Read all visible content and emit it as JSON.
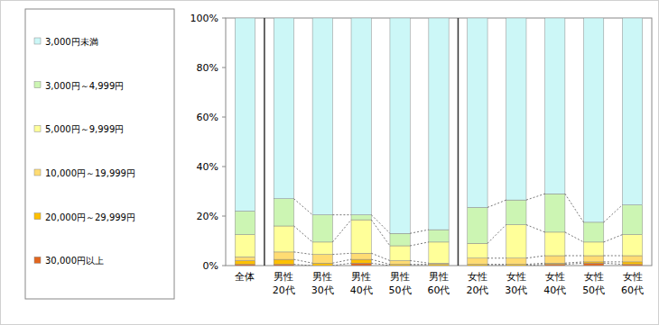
{
  "chart_data": {
    "type": "bar",
    "stacked": true,
    "categories": [
      "全体",
      "男性\n20代",
      "男性\n30代",
      "男性\n40代",
      "男性\n50代",
      "男性\n60代",
      "女性\n20代",
      "女性\n30代",
      "女性\n40代",
      "女性\n50代",
      "女性\n60代"
    ],
    "series": [
      {
        "name": "3,000円未満",
        "color": "#ccf7f7",
        "values": [
          78,
          73,
          79.5,
          79.5,
          87,
          85.5,
          76.5,
          73.5,
          71,
          82.5,
          75.5
        ]
      },
      {
        "name": "3,000円～4,999円",
        "color": "#ccf5b3",
        "values": [
          9.5,
          11,
          11,
          2,
          5,
          5,
          14.5,
          10,
          15.5,
          8,
          12
        ]
      },
      {
        "name": "5,000円～9,999円",
        "color": "#ffff99",
        "values": [
          9,
          10.5,
          5,
          13.5,
          6,
          8.5,
          6,
          13.5,
          9.5,
          5.5,
          8.5
        ]
      },
      {
        "name": "10,000円～19,999円",
        "color": "#ffdc73",
        "values": [
          1.5,
          3,
          3.5,
          2.5,
          1.5,
          0.5,
          2.5,
          2.5,
          3,
          2.5,
          2.5
        ]
      },
      {
        "name": "20,000円～29,999円",
        "color": "#ffc000",
        "values": [
          1.5,
          2,
          1,
          1.5,
          0.5,
          0.5,
          0.5,
          0.5,
          0.5,
          0.5,
          1
        ]
      },
      {
        "name": "30,000円以上",
        "color": "#e2661e",
        "values": [
          0.5,
          0.5,
          0,
          1,
          0,
          0,
          0,
          0,
          0.5,
          1,
          0.5
        ]
      }
    ],
    "ylim": [
      0,
      100
    ],
    "yticks": [
      {
        "value": 0,
        "label": "0%"
      },
      {
        "value": 20,
        "label": "20%"
      },
      {
        "value": 40,
        "label": "40%"
      },
      {
        "value": 60,
        "label": "60%"
      },
      {
        "value": 80,
        "label": "80%"
      },
      {
        "value": 100,
        "label": "100%"
      }
    ],
    "grid": false,
    "legend": "left"
  }
}
